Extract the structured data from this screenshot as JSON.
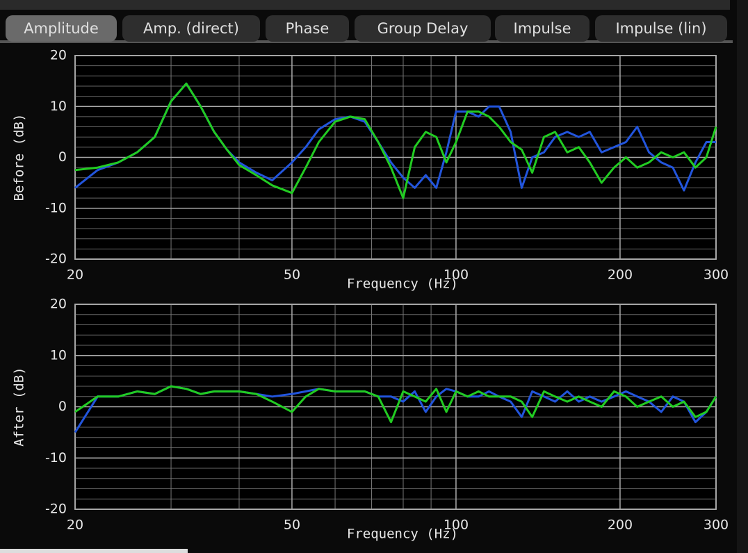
{
  "tabs": [
    "Amplitude",
    "Amp. (direct)",
    "Phase",
    "Group Delay",
    "Impulse",
    "Impulse (lin)"
  ],
  "active_tab": 0,
  "chart_data": [
    {
      "type": "line",
      "xlabel": "Frequency (Hz)",
      "ylabel": "Before (dB)",
      "log_x": true,
      "grid": true,
      "xlim": [
        20,
        300
      ],
      "ylim": [
        -20,
        20
      ],
      "xticks": [
        20,
        50,
        100,
        200,
        300
      ],
      "yticks": [
        -20,
        -10,
        0,
        10,
        20
      ],
      "x": [
        20,
        22,
        24,
        26,
        28,
        30,
        32,
        34,
        36,
        38,
        40,
        43,
        46,
        50,
        53,
        56,
        60,
        64,
        68,
        72,
        76,
        80,
        84,
        88,
        92,
        96,
        100,
        105,
        110,
        115,
        120,
        126,
        132,
        138,
        145,
        152,
        160,
        168,
        176,
        185,
        195,
        205,
        215,
        226,
        238,
        250,
        262,
        275,
        288,
        300
      ],
      "series": [
        {
          "color": "#2255dd",
          "values": [
            -6,
            -2.5,
            -1,
            1,
            4,
            11,
            14.5,
            10,
            5,
            1.5,
            -1,
            -3,
            -4.5,
            -1,
            2,
            5.5,
            7.5,
            8,
            7,
            3,
            -1,
            -4,
            -6,
            -3.5,
            -6,
            1,
            9,
            9,
            8,
            10,
            10,
            5,
            -6,
            0,
            1,
            4,
            5,
            4,
            5,
            1,
            2,
            3,
            6,
            1,
            -1,
            -2,
            -6.5,
            -1,
            3,
            3
          ]
        },
        {
          "color": "#22cc22",
          "values": [
            -2.5,
            -2,
            -1,
            1,
            4,
            11,
            14.5,
            10,
            5,
            1.5,
            -1.5,
            -3.5,
            -5.5,
            -7,
            -2,
            3,
            7,
            8,
            7.5,
            3,
            -2,
            -8,
            2,
            5,
            4,
            -1,
            3,
            9,
            9,
            8,
            6,
            3,
            1.5,
            -3,
            4,
            5,
            1,
            2,
            -1,
            -5,
            -2,
            0,
            -2,
            -1,
            1,
            0,
            1,
            -2,
            0,
            6
          ]
        }
      ]
    },
    {
      "type": "line",
      "xlabel": "Frequency (Hz)",
      "ylabel": "After (dB)",
      "log_x": true,
      "grid": true,
      "xlim": [
        20,
        300
      ],
      "ylim": [
        -20,
        20
      ],
      "xticks": [
        20,
        50,
        100,
        200,
        300
      ],
      "yticks": [
        -20,
        -10,
        0,
        10,
        20
      ],
      "x": [
        20,
        22,
        24,
        26,
        28,
        30,
        32,
        34,
        36,
        38,
        40,
        43,
        46,
        50,
        53,
        56,
        60,
        64,
        68,
        72,
        76,
        80,
        84,
        88,
        92,
        96,
        100,
        105,
        110,
        115,
        120,
        126,
        132,
        138,
        145,
        152,
        160,
        168,
        176,
        185,
        195,
        205,
        215,
        226,
        238,
        250,
        262,
        275,
        288,
        300
      ],
      "series": [
        {
          "color": "#2255dd",
          "values": [
            -5,
            2,
            2,
            3,
            2.5,
            4,
            3.5,
            2.5,
            3,
            3,
            3,
            2.5,
            2,
            2.5,
            3,
            3.5,
            3,
            3,
            3,
            2,
            2,
            1,
            3,
            -1,
            2,
            3.5,
            3,
            2,
            2,
            3,
            2,
            1,
            -2,
            3,
            2,
            1,
            3,
            1,
            2,
            1,
            2,
            3,
            2,
            1,
            -1,
            2,
            1,
            -3,
            -1,
            2
          ]
        },
        {
          "color": "#22cc22",
          "values": [
            -1,
            2,
            2,
            3,
            2.5,
            4,
            3.5,
            2.5,
            3,
            3,
            3,
            2.5,
            1,
            -1,
            2,
            3.5,
            3,
            3,
            3,
            2,
            -3,
            3,
            2,
            1,
            3.5,
            -1,
            3,
            2,
            3,
            2,
            2,
            2,
            1,
            -2,
            3,
            2,
            1,
            2,
            1,
            0,
            3,
            2,
            0,
            1,
            2,
            0,
            1,
            -2,
            -1,
            2
          ]
        }
      ]
    }
  ]
}
